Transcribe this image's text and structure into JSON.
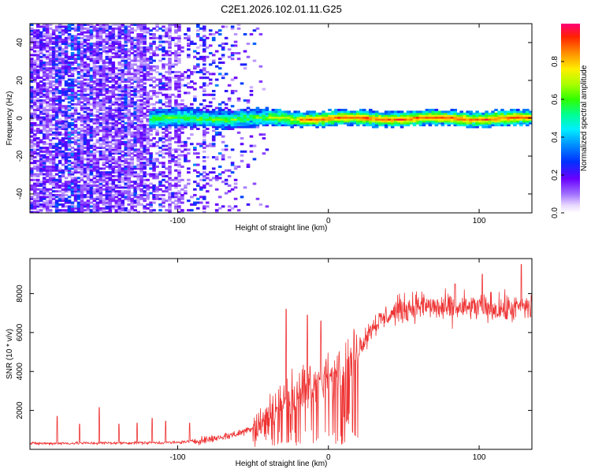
{
  "chart_data": [
    {
      "type": "heatmap",
      "title": "C2E1.2026.102.01.11.G25",
      "xlabel": "Height of straight line (km)",
      "ylabel": "Frequency (Hz)",
      "xlim": [
        -198,
        135
      ],
      "ylim": [
        -50,
        50
      ],
      "xticks": [
        -100,
        0,
        100
      ],
      "xtick_labels": [
        "-100",
        "0",
        "100"
      ],
      "yticks": [
        -40,
        -20,
        0,
        20,
        40
      ],
      "ytick_labels": [
        "-40",
        "-20",
        "0",
        "20",
        "40"
      ],
      "signal_band": {
        "center_hz": 0,
        "halfwidth_hz": 4,
        "onset_km": -118,
        "peak_from_km": -20
      },
      "colorbar": {
        "label": "Normalized spectral amplitude",
        "range": [
          0,
          1
        ],
        "ticks": [
          0.0,
          0.2,
          0.4,
          0.6,
          0.8
        ],
        "tick_labels": [
          "0.0",
          "0.2",
          "0.4",
          "0.6",
          "0.8"
        ],
        "colormap": "rainbow"
      }
    },
    {
      "type": "line",
      "xlabel": "Height of straight line (km)",
      "ylabel": "SNR (10 * v/v)",
      "xlim": [
        -198,
        135
      ],
      "ylim": [
        0,
        9800
      ],
      "xticks": [
        -100,
        0,
        100
      ],
      "xtick_labels": [
        "-100",
        "0",
        "100"
      ],
      "yticks": [
        2000,
        4000,
        6000,
        8000
      ],
      "ytick_labels": [
        "2000",
        "4000",
        "6000",
        "8000"
      ],
      "line_color": "#ee3333",
      "trend": [
        {
          "x": -198,
          "y": 300
        },
        {
          "x": -100,
          "y": 350
        },
        {
          "x": -80,
          "y": 500
        },
        {
          "x": -60,
          "y": 800
        },
        {
          "x": -45,
          "y": 1300
        },
        {
          "x": -30,
          "y": 2500
        },
        {
          "x": -15,
          "y": 3200
        },
        {
          "x": 0,
          "y": 3600
        },
        {
          "x": 10,
          "y": 4200
        },
        {
          "x": 20,
          "y": 5200
        },
        {
          "x": 30,
          "y": 6400
        },
        {
          "x": 45,
          "y": 7100
        },
        {
          "x": 60,
          "y": 7400
        },
        {
          "x": 80,
          "y": 7200
        },
        {
          "x": 100,
          "y": 7300
        },
        {
          "x": 120,
          "y": 7200
        },
        {
          "x": 135,
          "y": 7300
        }
      ],
      "spikes": [
        {
          "x": -180,
          "y": 1700
        },
        {
          "x": -165,
          "y": 1300
        },
        {
          "x": -152,
          "y": 2150
        },
        {
          "x": -139,
          "y": 1300
        },
        {
          "x": -127,
          "y": 1350
        },
        {
          "x": -117,
          "y": 1600
        },
        {
          "x": -108,
          "y": 1450
        },
        {
          "x": -92,
          "y": 1350
        },
        {
          "x": -28,
          "y": 7200
        },
        {
          "x": -14,
          "y": 6900
        },
        {
          "x": -5,
          "y": 6600
        },
        {
          "x": 84,
          "y": 8500
        },
        {
          "x": 102,
          "y": 9000
        },
        {
          "x": 128,
          "y": 9500
        }
      ]
    }
  ]
}
